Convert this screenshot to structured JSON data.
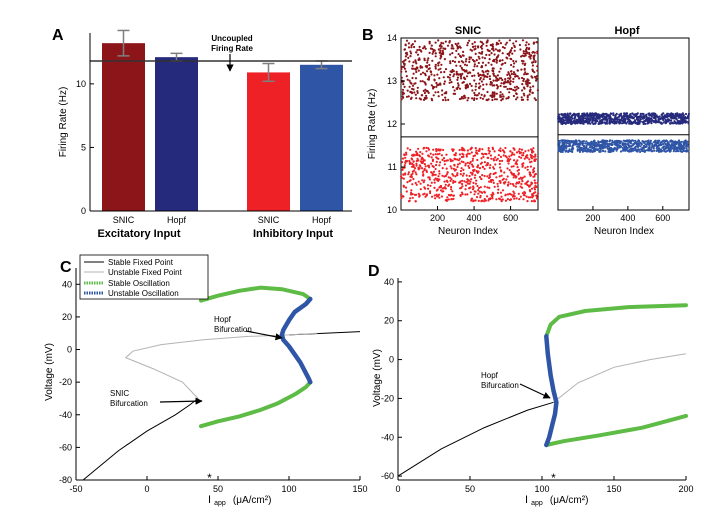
{
  "colors": {
    "snic_exc": "#8b1519",
    "hopf_exc": "#262a7c",
    "snic_inh": "#ee2127",
    "hopf_inh": "#2f55a6",
    "stable_osc": "#5dbb46",
    "unstable_osc": "#2f55a6",
    "unstable_fp": "#b3b3b3",
    "stable_fp": "#000000",
    "err": "#7f7f7f",
    "star": "#ee2127"
  },
  "chart_data": [
    {
      "panel": "A",
      "type": "bar",
      "ylabel": "Firing Rate (Hz)",
      "ylim": [
        0,
        14
      ],
      "yticks": [
        0,
        5,
        10
      ],
      "reference_line": 11.8,
      "annotation": {
        "line1": "Uncoupled",
        "line2": "Firing Rate"
      },
      "groups": [
        "Excitatory Input",
        "Inhibitory Input"
      ],
      "categories": [
        "SNIC",
        "Hopf",
        "SNIC",
        "Hopf"
      ],
      "values": [
        13.2,
        12.1,
        10.9,
        11.5
      ],
      "errors": [
        1.0,
        0.3,
        0.7,
        0.3
      ]
    },
    {
      "panel": "B",
      "type": "scatter",
      "title": "SNIC",
      "ylabel": "Firing Rate (Hz)",
      "xlabel": "Neuron Index",
      "xlim": [
        0,
        750
      ],
      "xticks": [
        200,
        400,
        600
      ],
      "ylim": [
        10,
        14
      ],
      "yticks": [
        10,
        11,
        12,
        13,
        14
      ],
      "reference_line": 11.7,
      "series": [
        {
          "name": "SNIC excitatory",
          "n": 750,
          "band": [
            12.55,
            13.95
          ]
        },
        {
          "name": "SNIC inhibitory",
          "n": 750,
          "band": [
            10.2,
            11.45
          ]
        }
      ]
    },
    {
      "panel": "B",
      "type": "scatter",
      "title": "Hopf",
      "xlabel": "Neuron Index",
      "xlim": [
        0,
        750
      ],
      "xticks": [
        200,
        400,
        600
      ],
      "ylim": [
        10,
        14
      ],
      "reference_line": 11.75,
      "series": [
        {
          "name": "Hopf excitatory",
          "n": 750,
          "band": [
            12.0,
            12.25
          ]
        },
        {
          "name": "Hopf inhibitory",
          "n": 750,
          "band": [
            11.35,
            11.62
          ]
        }
      ]
    },
    {
      "panel": "C",
      "type": "line",
      "ylabel": "Voltage (mV)",
      "xlabel_main": "I",
      "xlabel_sub": "app",
      "xlabel_unit": "(μA/cm²)",
      "xlim": [
        -50,
        150
      ],
      "xticks": [
        -50,
        0,
        50,
        100,
        150
      ],
      "ylim": [
        -80,
        50
      ],
      "yticks": [
        -80,
        -60,
        -40,
        -20,
        0,
        20,
        40
      ],
      "legend": [
        "Stable Fixed Point",
        "Unstable Fixed Point",
        "Stable Oscillation",
        "Unstable Oscillation"
      ],
      "annotations": [
        {
          "line1": "Hopf",
          "line2": "Bifurcation"
        },
        {
          "line1": "SNIC",
          "line2": "Bifurcation"
        }
      ],
      "star_x": 44,
      "stable_fp": [
        [
          -45,
          -80
        ],
        [
          -20,
          -62
        ],
        [
          0,
          -50
        ],
        [
          20,
          -40
        ],
        [
          30,
          -34
        ],
        [
          36,
          -30
        ]
      ],
      "unstable_fp": [
        [
          36,
          -30
        ],
        [
          25,
          -20
        ],
        [
          5,
          -12
        ],
        [
          -15,
          -5
        ],
        [
          -10,
          -1
        ],
        [
          10,
          3
        ],
        [
          40,
          6
        ],
        [
          70,
          8
        ],
        [
          100,
          9
        ],
        [
          120,
          10
        ]
      ],
      "stable_osc_top": [
        [
          38,
          30
        ],
        [
          50,
          33
        ],
        [
          65,
          36
        ],
        [
          80,
          38
        ],
        [
          95,
          37
        ],
        [
          110,
          34
        ],
        [
          115,
          31
        ]
      ],
      "stable_osc_bot": [
        [
          38,
          -47
        ],
        [
          50,
          -44
        ],
        [
          65,
          -41
        ],
        [
          80,
          -37
        ],
        [
          92,
          -33
        ],
        [
          105,
          -27
        ],
        [
          112,
          -23
        ],
        [
          115,
          -20
        ]
      ],
      "unstable_osc": [
        [
          115,
          31
        ],
        [
          112,
          28
        ],
        [
          104,
          23
        ],
        [
          100,
          18
        ],
        [
          96,
          12
        ],
        [
          95,
          9
        ],
        [
          96,
          6
        ],
        [
          100,
          2
        ],
        [
          104,
          -3
        ],
        [
          108,
          -8
        ],
        [
          111,
          -13
        ],
        [
          114,
          -18
        ],
        [
          115,
          -20
        ]
      ],
      "extra_line": [
        [
          100,
          9
        ],
        [
          150,
          11
        ]
      ]
    },
    {
      "panel": "D",
      "type": "line",
      "ylabel": "Voltage (mV)",
      "xlabel_main": "I",
      "xlabel_sub": "app",
      "xlabel_unit": "(μA/cm²)",
      "xlim": [
        0,
        200
      ],
      "xticks": [
        0,
        50,
        100,
        150,
        200
      ],
      "ylim": [
        -62,
        42
      ],
      "yticks": [
        -60,
        -40,
        -20,
        0,
        20,
        40
      ],
      "annotations": [
        {
          "line1": "Hopf",
          "line2": "Bifurcation"
        }
      ],
      "star_x": 108,
      "stable_fp": [
        [
          0,
          -60
        ],
        [
          30,
          -46
        ],
        [
          60,
          -35
        ],
        [
          90,
          -26
        ],
        [
          108,
          -22
        ]
      ],
      "unstable_fp": [
        [
          108,
          -22
        ],
        [
          125,
          -12
        ],
        [
          150,
          -4
        ],
        [
          175,
          0
        ],
        [
          200,
          3
        ]
      ],
      "stable_osc_top": [
        [
          103,
          12
        ],
        [
          106,
          18
        ],
        [
          112,
          22
        ],
        [
          130,
          25
        ],
        [
          160,
          27
        ],
        [
          200,
          28
        ]
      ],
      "stable_osc_bot": [
        [
          103,
          -44
        ],
        [
          115,
          -42
        ],
        [
          140,
          -39
        ],
        [
          170,
          -35
        ],
        [
          200,
          -29
        ]
      ],
      "unstable_osc": [
        [
          103,
          12
        ],
        [
          104,
          3
        ],
        [
          106,
          -8
        ],
        [
          108,
          -16
        ],
        [
          110,
          -22
        ],
        [
          109,
          -28
        ],
        [
          107,
          -34
        ],
        [
          105,
          -40
        ],
        [
          103,
          -44
        ]
      ]
    }
  ]
}
